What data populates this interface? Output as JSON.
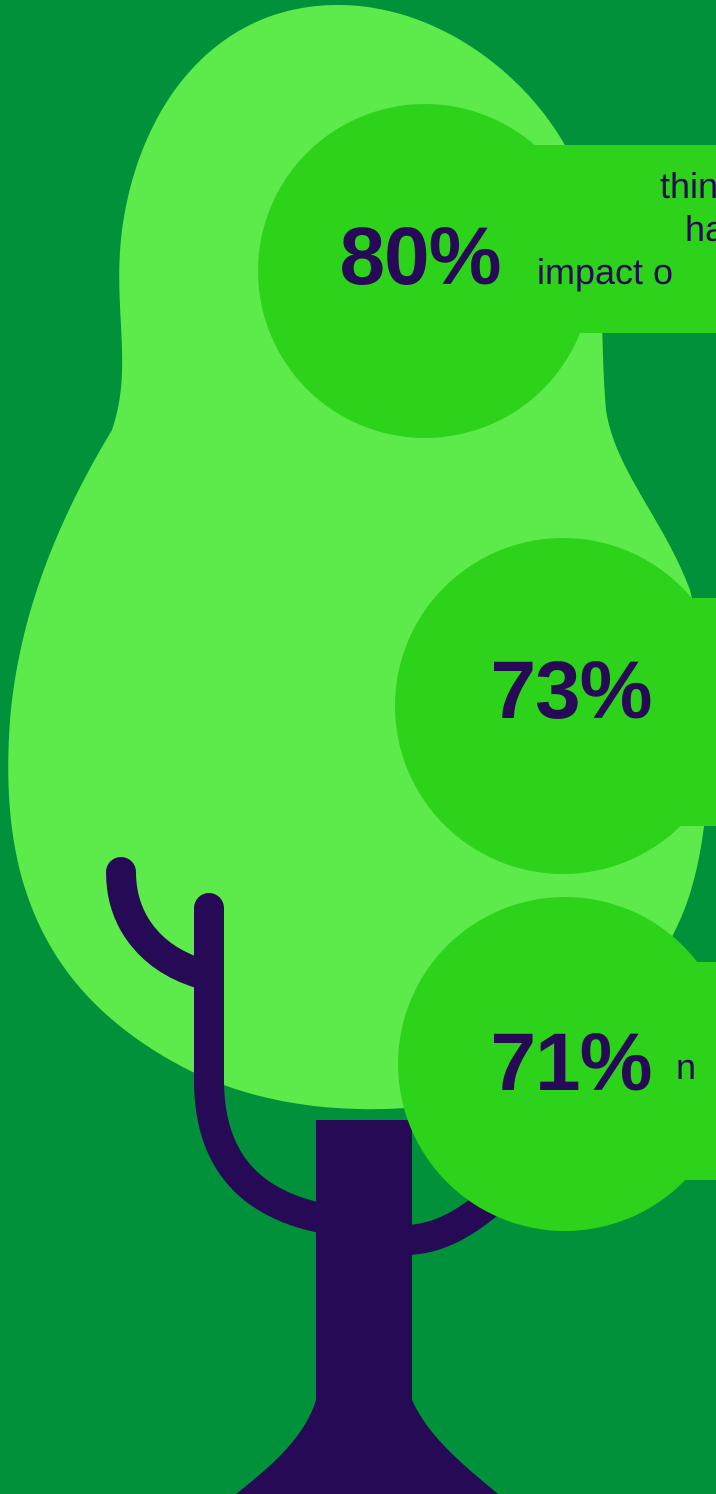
{
  "colors": {
    "background": "#00913a",
    "canopy": "#5ceb4b",
    "bubble": "#2dd21a",
    "trunk": "#260a55"
  },
  "stats": [
    {
      "value": "80%",
      "lines": [
        "thin",
        "ha",
        "impact o"
      ]
    },
    {
      "value": "73%",
      "lines": []
    },
    {
      "value": "71%",
      "lines": [
        "n"
      ]
    }
  ]
}
